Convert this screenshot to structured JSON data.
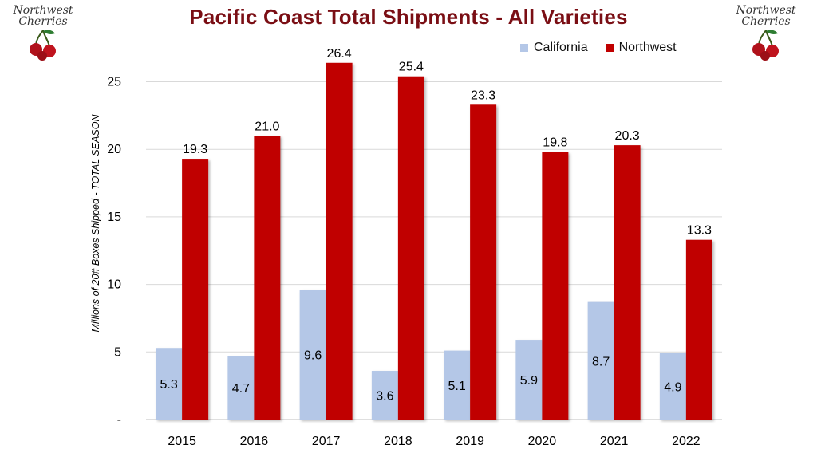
{
  "header": {
    "logo_text": "Northwest Cherries"
  },
  "colors": {
    "title": "#7a0e14",
    "california": "#b4c7e7",
    "northwest": "#c00000",
    "grid": "#d9d9d9"
  },
  "chart_data": {
    "type": "bar",
    "title": "Pacific Coast Total Shipments - All Varieties",
    "xlabel": "",
    "ylabel": "Millions of 20# Boxes Shipped - TOTAL SEASON",
    "ylim": [
      0,
      28
    ],
    "yticks": [
      0,
      5,
      10,
      15,
      20,
      25
    ],
    "ytick_labels": [
      "-",
      "5",
      "10",
      "15",
      "20",
      "25"
    ],
    "grid": true,
    "legend_position": "top-right",
    "categories": [
      "2015",
      "2016",
      "2017",
      "2018",
      "2019",
      "2020",
      "2021",
      "2022"
    ],
    "series": [
      {
        "name": "California",
        "values": [
          5.3,
          4.7,
          9.6,
          3.6,
          5.1,
          5.9,
          8.7,
          4.9
        ],
        "labels": [
          "5.3",
          "4.7",
          "9.6",
          "3.6",
          "5.1",
          "5.9",
          "8.7",
          "4.9"
        ]
      },
      {
        "name": "Northwest",
        "values": [
          19.3,
          21.0,
          26.4,
          25.4,
          23.3,
          19.8,
          20.3,
          13.3
        ],
        "labels": [
          "19.3",
          "21.0",
          "26.4",
          "25.4",
          "23.3",
          "19.8",
          "20.3",
          "13.3"
        ]
      }
    ]
  }
}
